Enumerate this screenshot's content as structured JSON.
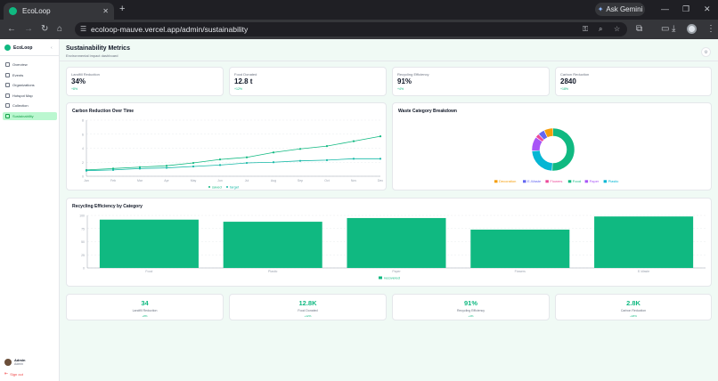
{
  "browser": {
    "tab_title": "EcoLoop",
    "url": "ecoloop-mauve.vercel.app/admin/sustainability",
    "gemini_label": "Ask Gemini"
  },
  "sidebar": {
    "brand": "EcoLoop",
    "items": [
      {
        "label": "Overview",
        "icon": "grid-icon",
        "active": false
      },
      {
        "label": "Events",
        "icon": "calendar-icon",
        "active": false
      },
      {
        "label": "Organizations",
        "icon": "globe-icon",
        "active": false
      },
      {
        "label": "Hotspot Map",
        "icon": "map-icon",
        "active": false
      },
      {
        "label": "Collection",
        "icon": "box-icon",
        "active": false
      },
      {
        "label": "Sustainability",
        "icon": "leaf-icon",
        "active": true
      }
    ],
    "user": {
      "name": "Admin",
      "role": "Admin"
    },
    "signout_label": "Sign out"
  },
  "header": {
    "title": "Sustainability Metrics",
    "subtitle": "Environmental impact dashboard"
  },
  "metrics": [
    {
      "label": "Landfill Reduction",
      "value": "34%",
      "change": "+8%"
    },
    {
      "label": "Food Donated",
      "value": "12.8 t",
      "change": "+12%"
    },
    {
      "label": "Recycling Efficiency",
      "value": "91%",
      "change": "+4%"
    },
    {
      "label": "Carbon Reduction",
      "value": "2840",
      "change": "+18%"
    }
  ],
  "line_chart": {
    "title": "Carbon Reduction Over Time",
    "chart_data": {
      "type": "line",
      "categories": [
        "Jan",
        "Feb",
        "Mar",
        "Apr",
        "May",
        "Jun",
        "Jul",
        "Aug",
        "Sep",
        "Oct",
        "Nov",
        "Dec"
      ],
      "series": [
        {
          "name": "saved",
          "color": "#10b981",
          "values": [
            0.9,
            1.1,
            1.3,
            1.5,
            1.9,
            2.4,
            2.7,
            3.4,
            3.9,
            4.3,
            5.0,
            5.7
          ]
        },
        {
          "name": "target",
          "color": "#14b8a6",
          "values": [
            0.8,
            0.9,
            1.1,
            1.2,
            1.4,
            1.6,
            1.9,
            2.0,
            2.2,
            2.3,
            2.5,
            2.5
          ]
        }
      ],
      "ylim": [
        0,
        8
      ],
      "yticks": [
        0,
        2,
        4,
        6,
        8
      ],
      "grid": true,
      "legend": "bottom"
    }
  },
  "donut_chart": {
    "title": "Waste Category Breakdown",
    "chart_data": {
      "type": "pie",
      "categories": [
        "Decoration",
        "E-Waste",
        "Flowers",
        "Food",
        "Paper",
        "Plastic"
      ],
      "values": [
        7,
        5,
        3,
        51,
        11,
        23
      ],
      "colors": [
        "#f59e0b",
        "#6366f1",
        "#ec4899",
        "#10b981",
        "#a855f7",
        "#06b6d4"
      ],
      "legend": "bottom"
    }
  },
  "bar_chart": {
    "title": "Recycling Efficiency by Category",
    "chart_data": {
      "type": "bar",
      "categories": [
        "Food",
        "Plastic",
        "Paper",
        "Flowers",
        "E-Waste"
      ],
      "series": [
        {
          "name": "recovered",
          "color": "#10b981",
          "values": [
            92,
            88,
            95,
            73,
            98
          ]
        }
      ],
      "ylim": [
        0,
        100
      ],
      "yticks": [
        0,
        25,
        50,
        75,
        100
      ],
      "grid": true,
      "legend": "bottom"
    }
  },
  "summary": [
    {
      "value": "34",
      "label": "Landfill Reduction",
      "change": "+8%"
    },
    {
      "value": "12.8K",
      "label": "Food Donated",
      "change": "+12%"
    },
    {
      "value": "91%",
      "label": "Recycling Efficiency",
      "change": "+4%"
    },
    {
      "value": "2.8K",
      "label": "Carbon Reduction",
      "change": "+18%"
    }
  ]
}
